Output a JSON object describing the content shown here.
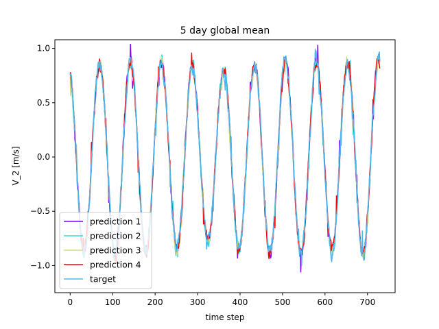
{
  "chart_data": {
    "type": "line",
    "title": "5 day global mean",
    "xlabel": "time step",
    "ylabel": "V_2 [m/s]",
    "xlim": [
      -36,
      765
    ],
    "ylim": [
      -1.25,
      1.08
    ],
    "xticks": [
      0,
      100,
      200,
      300,
      400,
      500,
      600,
      700
    ],
    "yticks": [
      -1.0,
      -0.5,
      0.0,
      0.5,
      1.0
    ],
    "xtick_labels": [
      "0",
      "100",
      "200",
      "300",
      "400",
      "500",
      "600",
      "700"
    ],
    "ytick_labels": [
      "−1.0",
      "−0.5",
      "0.0",
      "0.5",
      "1.0"
    ],
    "n_points": 730,
    "period_steps": 73,
    "base_amplitude": 0.83,
    "phase_offset": 0.35,
    "legend_position": "lower-left",
    "series": [
      {
        "name": "prediction 1",
        "color": "#7f00ff",
        "noise": 0.09,
        "seed": 11
      },
      {
        "name": "prediction 2",
        "color": "#2adddd",
        "noise": 0.1,
        "seed": 23
      },
      {
        "name": "prediction 3",
        "color": "#d4dd80",
        "noise": 0.1,
        "seed": 37
      },
      {
        "name": "prediction 4",
        "color": "#ff0000",
        "noise": 0.1,
        "seed": 51
      },
      {
        "name": "target",
        "color": "#4db8f0",
        "noise": 0.13,
        "seed": 71
      }
    ]
  }
}
